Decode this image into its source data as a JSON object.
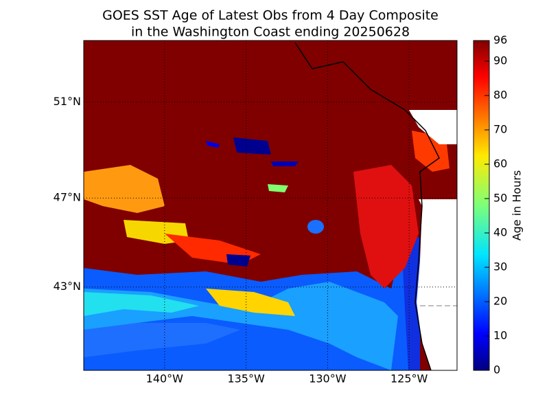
{
  "title": [
    "GOES SST Age of Latest Obs from 4 Day Composite",
    "in the Washington Coast ending 20250628"
  ],
  "map": {
    "xlim": [
      -144.96,
      -122.06
    ],
    "ylim": [
      39.0,
      53.4
    ],
    "xticks": [
      {
        "value": -140,
        "label": "140°W"
      },
      {
        "value": -135,
        "label": "135°W"
      },
      {
        "value": -130,
        "label": "130°W"
      },
      {
        "value": -125,
        "label": "125°W"
      }
    ],
    "yticks": [
      {
        "value": 43,
        "label": "43°N"
      },
      {
        "value": 47,
        "label": "47°N"
      },
      {
        "value": 51,
        "label": "51°N"
      }
    ],
    "grid": true
  },
  "colorbar": {
    "label": "Age in Hours",
    "lim": [
      0,
      96
    ],
    "ticks": [
      0,
      10,
      20,
      30,
      40,
      50,
      60,
      70,
      80,
      90,
      96
    ]
  }
}
